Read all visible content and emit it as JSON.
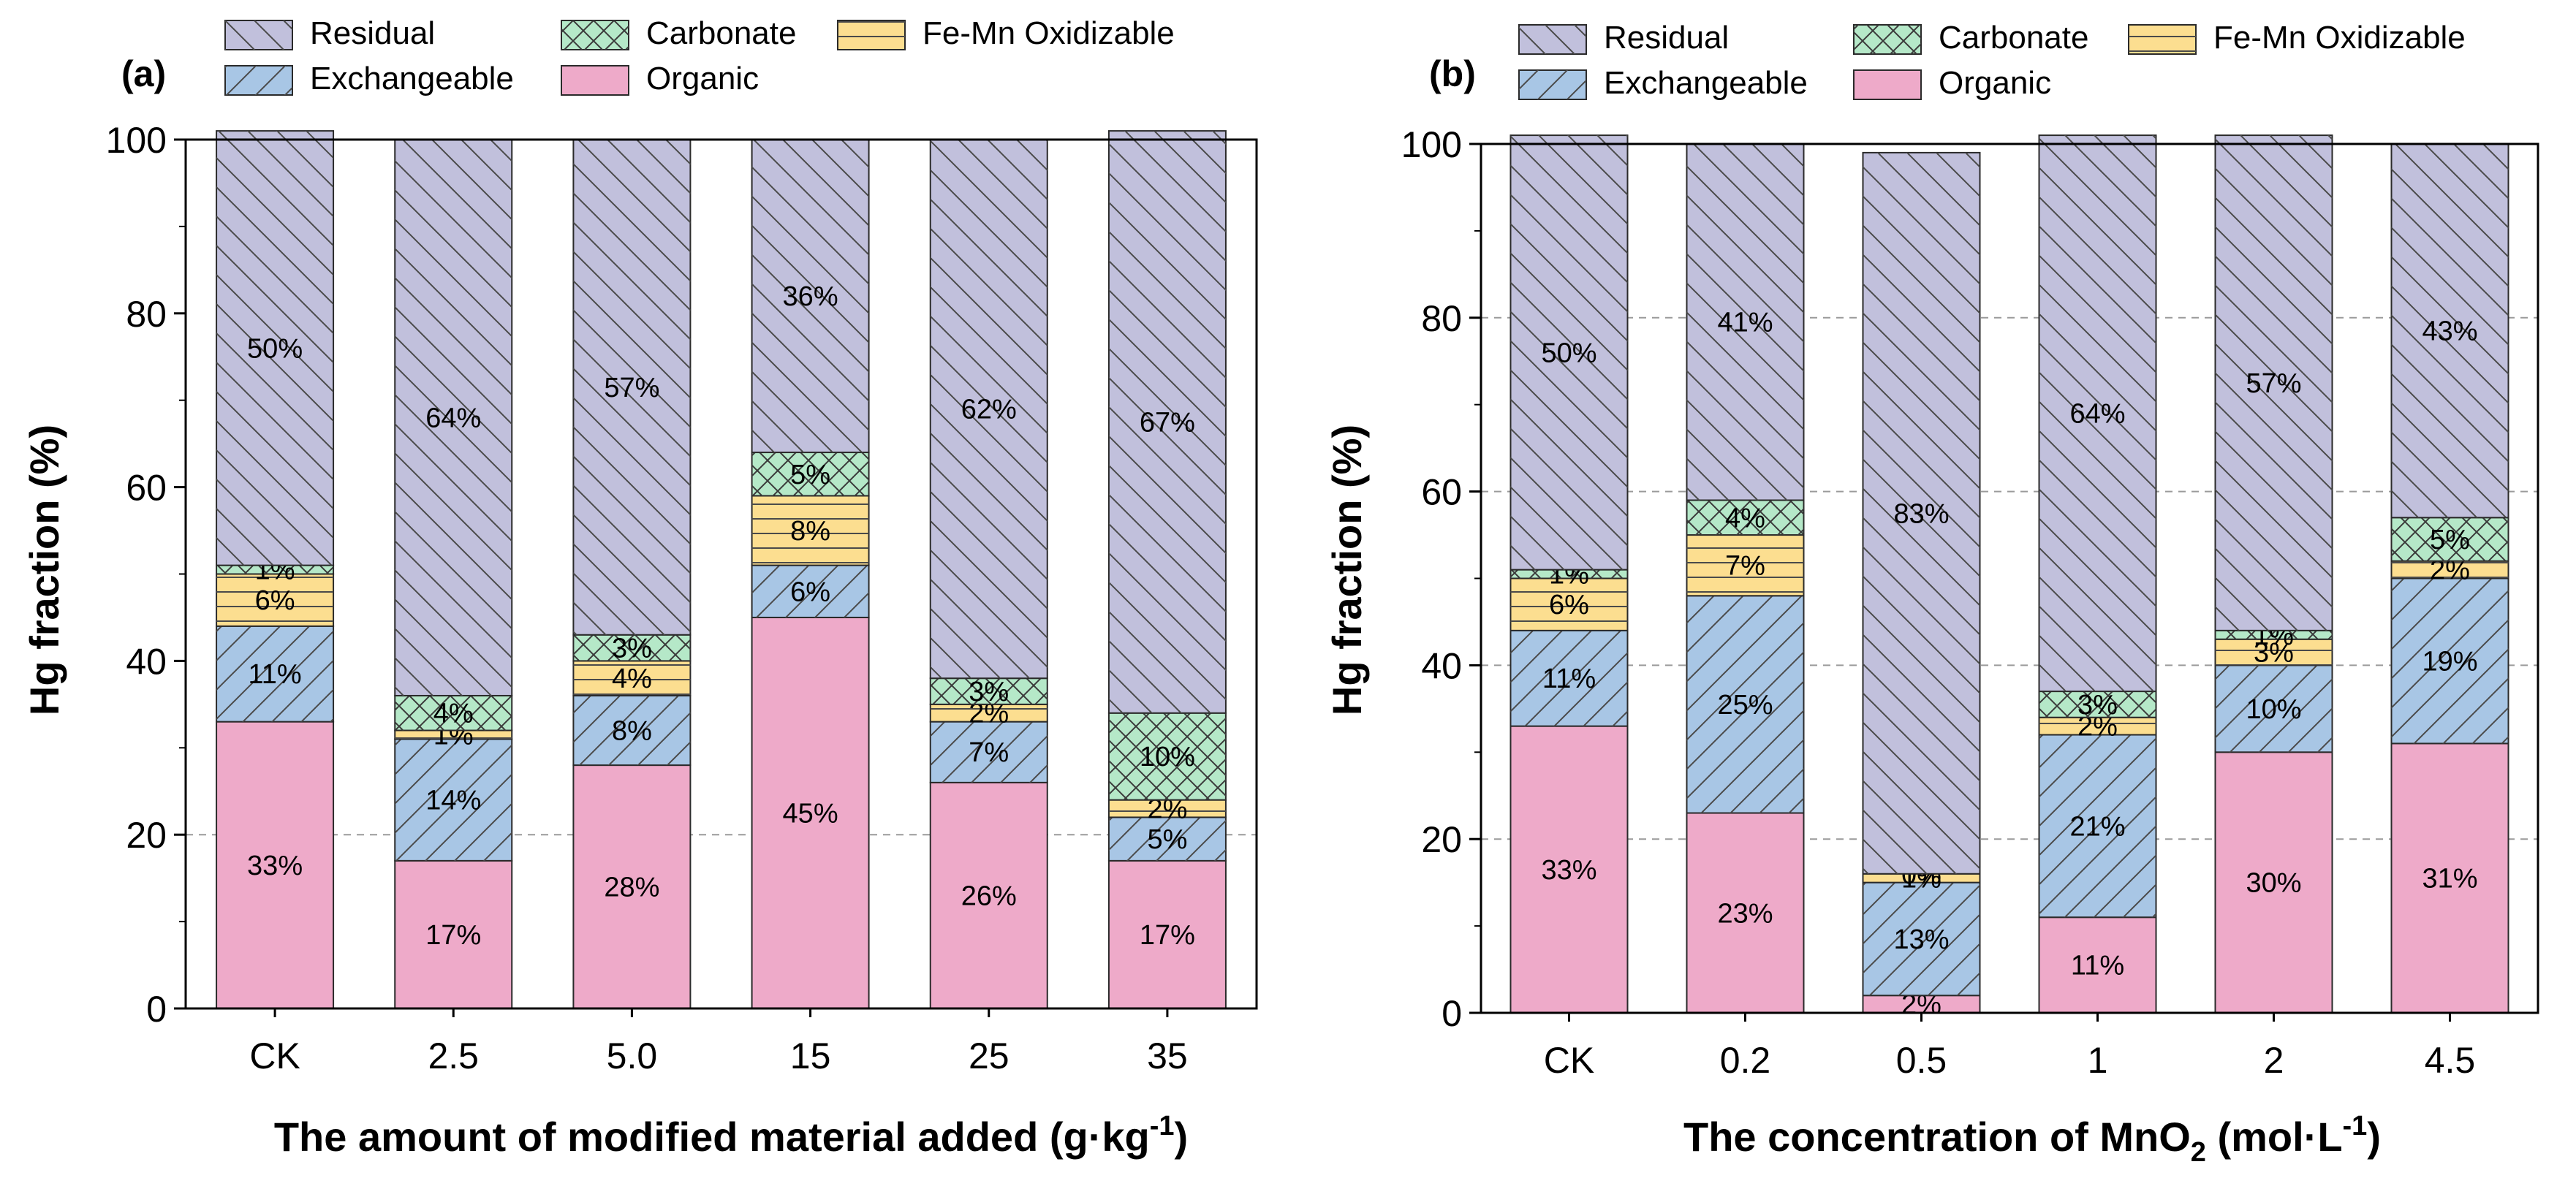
{
  "colors": {
    "Organic": "#eeaac9",
    "Exchangeable": "#a8c6e5",
    "Fe-Mn Oxidizable": "#fcde90",
    "Carbonate": "#b5e8c8",
    "Residual": "#c1c0dc",
    "hatch_line": "#4a4a4a",
    "grid": "#9a9a9a"
  },
  "legend_items": [
    {
      "key": "Residual",
      "label": "Residual",
      "pattern": "hatch-back"
    },
    {
      "key": "Carbonate",
      "label": "Carbonate",
      "pattern": "cross"
    },
    {
      "key": "Fe-Mn Oxidizable",
      "label": "Fe-Mn Oxidizable",
      "pattern": "horiz"
    },
    {
      "key": "Exchangeable",
      "label": "Exchangeable",
      "pattern": "hatch-fwd"
    },
    {
      "key": "Organic",
      "label": "Organic",
      "pattern": "none"
    }
  ],
  "chart_data": [
    {
      "panel_label": "(a)",
      "type": "bar",
      "stacked": true,
      "xlabel_main": "The amount of modified material added (g·kg",
      "xlabel_sup": "-1",
      "xlabel_tail": ")",
      "ylabel": "Hg fraction (%)",
      "ylim": [
        0,
        100
      ],
      "yticks": [
        0,
        20,
        40,
        60,
        80,
        100
      ],
      "grid": "dashed horizontal at 20",
      "categories": [
        "CK",
        "2.5",
        "5.0",
        "15",
        "25",
        "35"
      ],
      "series": [
        {
          "name": "Organic",
          "values": [
            33,
            17,
            28,
            45,
            26,
            17
          ],
          "labels": [
            "33%",
            "17%",
            "28%",
            "45%",
            "26%",
            "17%"
          ]
        },
        {
          "name": "Exchangeable",
          "values": [
            11,
            14,
            8,
            6,
            7,
            5
          ],
          "labels": [
            "11%",
            "14%",
            "8%",
            "6%",
            "7%",
            "5%"
          ]
        },
        {
          "name": "Fe-Mn Oxidizable",
          "values": [
            6,
            1,
            4,
            8,
            2,
            2
          ],
          "labels": [
            "6%",
            "1%",
            "4%",
            "8%",
            "2%",
            "2%"
          ]
        },
        {
          "name": "Carbonate",
          "values": [
            1,
            4,
            3,
            5,
            3,
            10
          ],
          "labels": [
            "1%",
            "4%",
            "3%",
            "5%",
            "3%",
            "10%"
          ]
        },
        {
          "name": "Residual",
          "values": [
            50,
            64,
            57,
            36,
            62,
            67
          ],
          "labels": [
            "50%",
            "64%",
            "57%",
            "36%",
            "62%",
            "67%"
          ]
        }
      ]
    },
    {
      "panel_label": "(b)",
      "type": "bar",
      "stacked": true,
      "xlabel_main": "The concentration of MnO",
      "xlabel_sub": "2",
      "xlabel_mid": " (mol·L",
      "xlabel_sup": "-1",
      "xlabel_tail": ")",
      "ylabel": "Hg fraction (%)",
      "ylim": [
        0,
        100
      ],
      "yticks": [
        0,
        20,
        40,
        60,
        80,
        100
      ],
      "grid": "dashed horizontal at every tick",
      "categories": [
        "CK",
        "0.2",
        "0.5",
        "1",
        "2",
        "4.5"
      ],
      "series": [
        {
          "name": "Organic",
          "values": [
            33,
            23,
            2,
            11,
            30,
            31
          ],
          "labels": [
            "33%",
            "23%",
            "2%",
            "11%",
            "30%",
            "31%"
          ]
        },
        {
          "name": "Exchangeable",
          "values": [
            11,
            25,
            13,
            21,
            10,
            19
          ],
          "labels": [
            "11%",
            "25%",
            "13%",
            "21%",
            "10%",
            "19%"
          ]
        },
        {
          "name": "Fe-Mn Oxidizable",
          "values": [
            6,
            7,
            1,
            2,
            3,
            2
          ],
          "labels": [
            "6%",
            "7%",
            "1%",
            "2%",
            "3%",
            "2%"
          ]
        },
        {
          "name": "Carbonate",
          "values": [
            1,
            4,
            0,
            3,
            1,
            5
          ],
          "labels": [
            "1%",
            "4%",
            "0%",
            "3%",
            "1%",
            "5%"
          ]
        },
        {
          "name": "Residual",
          "values": [
            50,
            41,
            83,
            64,
            57,
            43
          ],
          "labels": [
            "50%",
            "41%",
            "83%",
            "64%",
            "57%",
            "43%"
          ]
        }
      ]
    }
  ]
}
